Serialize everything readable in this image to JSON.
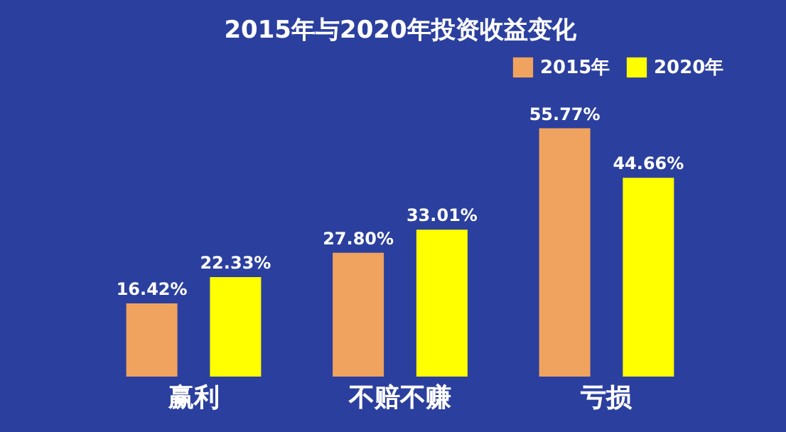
{
  "chart_data": {
    "type": "bar",
    "title": "2015年与2020年投资收益变化",
    "categories": [
      "赢利",
      "不赔不赚",
      "亏损"
    ],
    "series": [
      {
        "name": "2015年",
        "color": "#f0a35e",
        "values": [
          16.42,
          27.8,
          55.77
        ],
        "value_labels": [
          "16.42%",
          "27.80%",
          "55.77%"
        ]
      },
      {
        "name": "2020年",
        "color": "#ffff00",
        "values": [
          22.33,
          33.01,
          44.66
        ],
        "value_labels": [
          "22.33%",
          "33.01%",
          "44.66%"
        ]
      }
    ],
    "legend": "top right",
    "grid": false
  }
}
